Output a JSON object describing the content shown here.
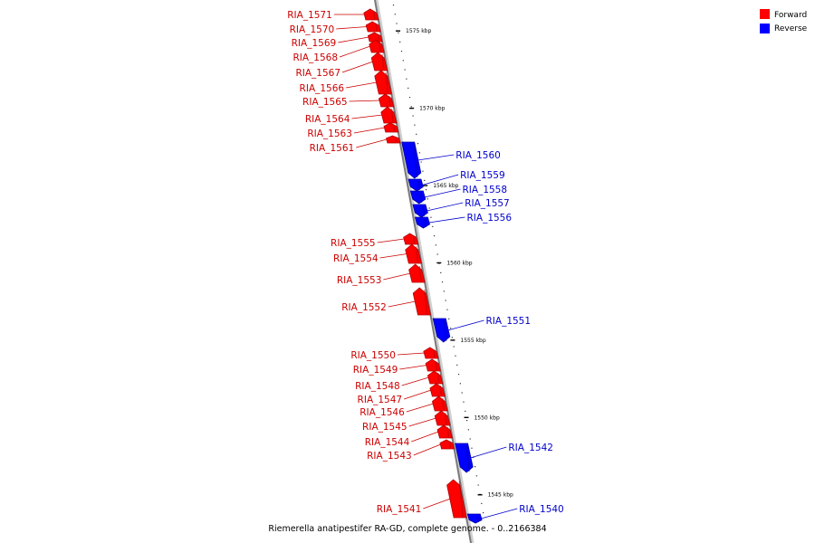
{
  "caption": "Riemerella anatipestifer RA-GD, complete genome. - 0..2166384",
  "legend": [
    {
      "label": "Forward",
      "color": "#ff0000"
    },
    {
      "label": "Reverse",
      "color": "#0000ff"
    }
  ],
  "colors": {
    "forward_fill": "#ff0000",
    "forward_dark": "#b30000",
    "forward_label": "#cc0000",
    "reverse_fill": "#0000ff",
    "reverse_dark": "#0000a0",
    "reverse_label": "#0000cc",
    "axis": "#7a7a7a"
  },
  "scale_range_kbp": [
    1542,
    1577
  ],
  "ticks": [
    {
      "label": "1575 kbp",
      "kbp": 1575
    },
    {
      "label": "1570 kbp",
      "kbp": 1570
    },
    {
      "label": "1565 kbp",
      "kbp": 1565
    },
    {
      "label": "1560 kbp",
      "kbp": 1560
    },
    {
      "label": "1555 kbp",
      "kbp": 1555
    },
    {
      "label": "1550 kbp",
      "kbp": 1550
    },
    {
      "label": "1545 kbp",
      "kbp": 1545
    }
  ],
  "genes": [
    {
      "name": "RIA_1571",
      "strand": "forward"
    },
    {
      "name": "RIA_1570",
      "strand": "forward"
    },
    {
      "name": "RIA_1569",
      "strand": "forward"
    },
    {
      "name": "RIA_1568",
      "strand": "forward"
    },
    {
      "name": "RIA_1567",
      "strand": "forward"
    },
    {
      "name": "RIA_1566",
      "strand": "forward"
    },
    {
      "name": "RIA_1565",
      "strand": "forward"
    },
    {
      "name": "RIA_1564",
      "strand": "forward"
    },
    {
      "name": "RIA_1563",
      "strand": "forward"
    },
    {
      "name": "RIA_1561",
      "strand": "forward"
    },
    {
      "name": "RIA_1560",
      "strand": "reverse"
    },
    {
      "name": "RIA_1559",
      "strand": "reverse"
    },
    {
      "name": "RIA_1558",
      "strand": "reverse"
    },
    {
      "name": "RIA_1557",
      "strand": "reverse"
    },
    {
      "name": "RIA_1556",
      "strand": "reverse"
    },
    {
      "name": "RIA_1555",
      "strand": "forward"
    },
    {
      "name": "RIA_1554",
      "strand": "forward"
    },
    {
      "name": "RIA_1553",
      "strand": "forward"
    },
    {
      "name": "RIA_1552",
      "strand": "forward"
    },
    {
      "name": "RIA_1551",
      "strand": "reverse"
    },
    {
      "name": "RIA_1550",
      "strand": "forward"
    },
    {
      "name": "RIA_1549",
      "strand": "forward"
    },
    {
      "name": "RIA_1548",
      "strand": "forward"
    },
    {
      "name": "RIA_1547",
      "strand": "forward"
    },
    {
      "name": "RIA_1546",
      "strand": "forward"
    },
    {
      "name": "RIA_1545",
      "strand": "forward"
    },
    {
      "name": "RIA_1544",
      "strand": "forward"
    },
    {
      "name": "RIA_1543",
      "strand": "forward"
    },
    {
      "name": "RIA_1542",
      "strand": "reverse"
    },
    {
      "name": "RIA_1541",
      "strand": "forward"
    },
    {
      "name": "RIA_1540",
      "strand": "reverse"
    }
  ]
}
